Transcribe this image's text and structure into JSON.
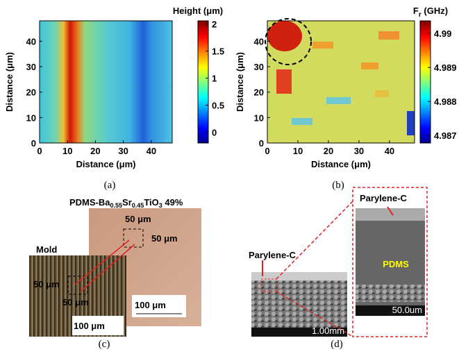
{
  "heatmaps": [
    {
      "label": "(a)",
      "title": "Height (μm)",
      "x_label": "Distance (μm)",
      "y_label": "Distance (μm)",
      "xlim": [
        0,
        47.5
      ],
      "ylim": [
        0,
        48
      ],
      "xticks": [
        0,
        10,
        20,
        30,
        40
      ],
      "yticks": [
        0,
        10,
        20,
        30,
        40
      ],
      "colorbar_lim": [
        -0.2,
        2.06
      ],
      "colorbar_ticks": [
        0,
        0.5,
        1,
        1.5,
        2
      ]
    },
    {
      "label": "(b)",
      "title": "F",
      "title_sub": "r",
      "title_rest": " (GHz)",
      "x_label": "Distance (μm)",
      "y_label": "Distance (μm)",
      "xlim": [
        0,
        48.2
      ],
      "ylim": [
        0,
        48
      ],
      "xticks": [
        0,
        10,
        20,
        30,
        40
      ],
      "yticks": [
        0,
        10,
        20,
        30,
        40
      ],
      "colorbar_lim": [
        4.98678,
        4.99037
      ],
      "colorbar_ticks": [
        4.987,
        4.988,
        4.989,
        4.99
      ]
    }
  ],
  "panel_c": {
    "label": "(c)",
    "sample": [
      "PDMS-Ba",
      "0.55",
      "Sr",
      "0.45",
      "TiO",
      "3",
      " 49%"
    ],
    "mold": "Mold",
    "scale_small": [
      "50 μm",
      "50 μm",
      "50 μm",
      "50 μm"
    ],
    "scale_large": [
      "100 μm",
      "100 μm"
    ]
  },
  "panel_d": {
    "label": "(d)",
    "layer_1": "Parylene-C",
    "layer_2": "Parylene-C",
    "bulk": "PDMS",
    "scale_sem": "1.00mm",
    "scale_inset": "50.0um"
  }
}
